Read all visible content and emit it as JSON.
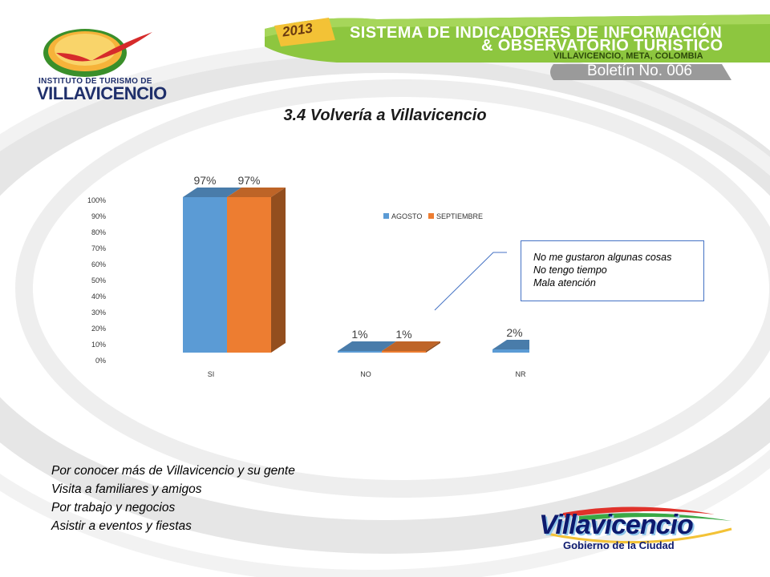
{
  "header": {
    "year": "2013",
    "line1": "SISTEMA DE INDICADORES DE INFORMACIÓN",
    "line2": "& OBSERVATORIO TURÍSTICO",
    "line3": "VILLAVICENCIO, META, COLOMBIA",
    "bulletin": "Boletín No. 006"
  },
  "logos": {
    "institute_line1": "INSTITUTO DE TURISMO DE",
    "institute_line2": "VILLAVICENCIO",
    "city_name": "Villavicencio",
    "city_subtitle": "Gobierno de la Ciudad"
  },
  "colors": {
    "header_green": "#8dc63f",
    "header_dark_green": "#5e9e1c",
    "bulletin_gray": "#9a9a9a",
    "series_agosto": "#5b9bd5",
    "series_septiembre": "#ed7d31"
  },
  "note": {
    "lines": [
      "No me gustaron algunas cosas",
      "No tengo tiempo",
      "Mala atención"
    ]
  },
  "reasons": [
    "Por conocer más de Villavicencio y su gente",
    "Visita a familiares y amigos",
    "Por trabajo y negocios",
    "Asistir a eventos y fiestas"
  ],
  "chart_data": {
    "type": "bar",
    "title": "3.4 Volvería a Villavicencio",
    "categories": [
      "SI",
      "NO",
      "NR"
    ],
    "series": [
      {
        "name": "AGOSTO",
        "values": [
          97,
          1,
          2
        ],
        "labels": [
          "97%",
          "1%",
          "2%"
        ],
        "color": "#5b9bd5"
      },
      {
        "name": "SEPTIEMBRE",
        "values": [
          97,
          1,
          2
        ],
        "labels": [
          "97%",
          "1%",
          "2%"
        ],
        "color": "#ed7d31"
      }
    ],
    "yticks": [
      "0%",
      "10%",
      "20%",
      "30%",
      "40%",
      "50%",
      "60%",
      "70%",
      "80%",
      "90%",
      "100%"
    ],
    "ylim": [
      0,
      100
    ],
    "grid": false,
    "legend": "top-center",
    "three_d": true
  }
}
